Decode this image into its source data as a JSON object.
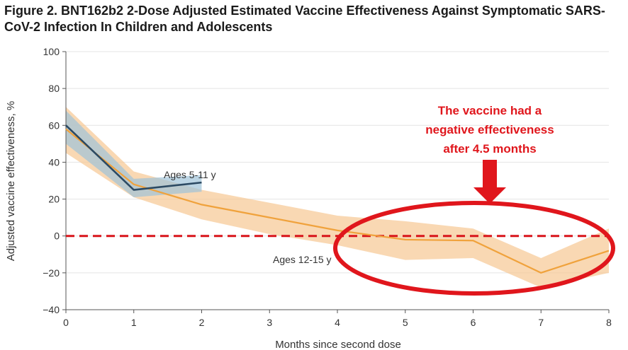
{
  "chart_data": {
    "type": "line",
    "title": "Figure 2.  BNT162b2 2-Dose Adjusted Estimated Vaccine Effectiveness Against Symptomatic SARS-CoV-2 Infection In Children and Adolescents",
    "xlabel": "Months since second dose",
    "ylabel": "Adjusted vaccine effectiveness, %",
    "xlim": [
      0,
      8
    ],
    "ylim": [
      -40,
      100
    ],
    "xticks": [
      "0",
      "1",
      "2",
      "3",
      "4",
      "5",
      "6",
      "7",
      "8"
    ],
    "yticks": [
      "100",
      "80",
      "60",
      "40",
      "20",
      "0",
      "−20",
      "−40"
    ],
    "grid": true,
    "series": [
      {
        "name": "Ages 12-15 y",
        "color": "#f0a23c",
        "band_color": "#f7c893",
        "x": [
          0,
          1,
          2,
          3,
          4,
          5,
          6,
          7,
          8
        ],
        "values": [
          58,
          28,
          17,
          10,
          3,
          -2,
          -2.5,
          -20,
          -8
        ],
        "lower": [
          45,
          21,
          9,
          1,
          -5,
          -13,
          -12,
          -28,
          -20
        ],
        "upper": [
          70,
          35,
          25,
          18,
          11,
          8,
          4,
          -12,
          4
        ]
      },
      {
        "name": "Ages 5-11 y",
        "color": "#2c4a63",
        "band_color": "#9fc3d8",
        "x": [
          0,
          1,
          2
        ],
        "values": [
          60,
          25,
          29
        ],
        "lower": [
          50,
          21,
          24
        ],
        "upper": [
          68,
          31,
          33
        ]
      }
    ],
    "reference_line": {
      "y": 0,
      "color": "#d8141a"
    },
    "annotation": {
      "lines": [
        "The vaccine had a",
        "negative effectiveness",
        "after 4.5 months"
      ],
      "color": "#e0161c"
    }
  }
}
